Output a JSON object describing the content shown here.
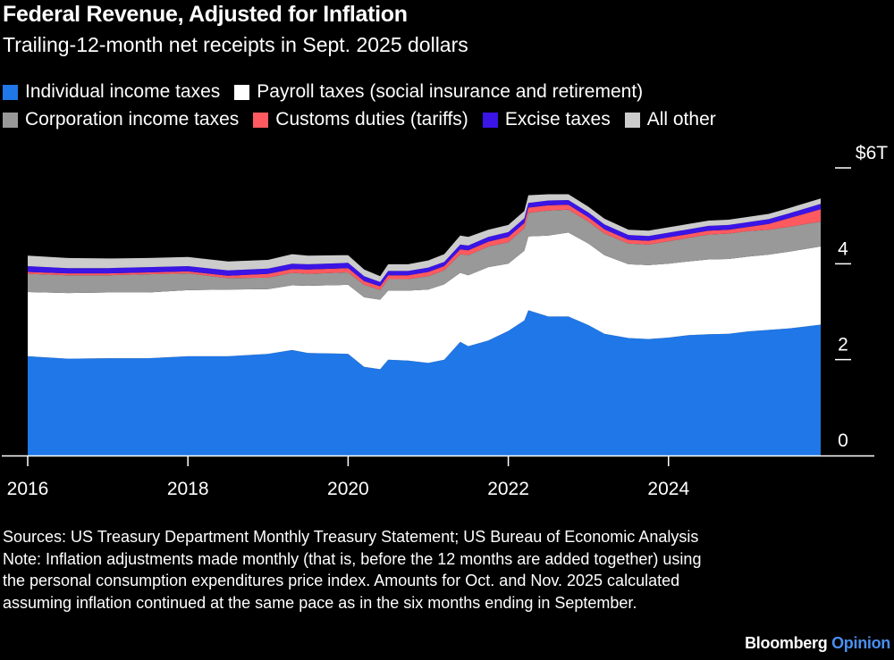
{
  "header": {
    "title": "Federal Revenue, Adjusted for Inflation",
    "subtitle": "Trailing-12-month net receipts in Sept. 2025 dollars"
  },
  "legend": {
    "row1": [
      {
        "label": "Individual income taxes",
        "color": "#1f77e8"
      },
      {
        "label": "Payroll taxes (social insurance and retirement)",
        "color": "#ffffff"
      }
    ],
    "row2": [
      {
        "label": "Corporation income taxes",
        "color": "#999999"
      },
      {
        "label": "Customs duties (tariffs)",
        "color": "#ff5a5f"
      },
      {
        "label": "Excise taxes",
        "color": "#3b14e6"
      },
      {
        "label": "All other",
        "color": "#cccccc"
      }
    ]
  },
  "chart_data": {
    "type": "area",
    "stacked": true,
    "title": "Federal Revenue, Adjusted for Inflation",
    "subtitle": "Trailing-12-month net receipts in Sept. 2025 dollars",
    "xlabel": "",
    "ylabel": "",
    "xlim": [
      2016.0,
      2025.9
    ],
    "ylim": [
      0,
      6
    ],
    "x_ticks": [
      2016,
      2018,
      2020,
      2022,
      2024
    ],
    "x_tick_labels": [
      "2016",
      "2018",
      "2020",
      "2022",
      "2024"
    ],
    "y_ticks": [
      0,
      2,
      4,
      6
    ],
    "y_tick_labels": [
      "0",
      "2",
      "4",
      "$6T"
    ],
    "gridlines": false,
    "legend_position": "top",
    "x": [
      2016.0,
      2016.5,
      2017.0,
      2017.5,
      2018.0,
      2018.5,
      2019.0,
      2019.3,
      2019.5,
      2020.0,
      2020.2,
      2020.4,
      2020.5,
      2020.75,
      2021.0,
      2021.2,
      2021.4,
      2021.5,
      2021.75,
      2022.0,
      2022.2,
      2022.25,
      2022.5,
      2022.75,
      2023.0,
      2023.2,
      2023.5,
      2023.75,
      2024.0,
      2024.25,
      2024.5,
      2024.75,
      2025.0,
      2025.25,
      2025.5,
      2025.9
    ],
    "series": [
      {
        "name": "Individual income taxes",
        "color": "#1f77e8",
        "values": [
          2.07,
          2.02,
          2.03,
          2.03,
          2.07,
          2.07,
          2.12,
          2.2,
          2.14,
          2.12,
          1.85,
          1.8,
          2.0,
          1.98,
          1.93,
          2.0,
          2.37,
          2.28,
          2.4,
          2.6,
          2.82,
          3.03,
          2.9,
          2.9,
          2.72,
          2.54,
          2.45,
          2.43,
          2.46,
          2.51,
          2.53,
          2.54,
          2.59,
          2.62,
          2.65,
          2.73
        ]
      },
      {
        "name": "Payroll taxes (social insurance and retirement)",
        "color": "#ffffff",
        "values": [
          1.34,
          1.37,
          1.37,
          1.37,
          1.38,
          1.39,
          1.35,
          1.35,
          1.4,
          1.44,
          1.45,
          1.45,
          1.44,
          1.46,
          1.53,
          1.57,
          1.44,
          1.48,
          1.53,
          1.4,
          1.45,
          1.54,
          1.69,
          1.75,
          1.7,
          1.64,
          1.54,
          1.54,
          1.54,
          1.54,
          1.56,
          1.56,
          1.56,
          1.57,
          1.6,
          1.63
        ]
      },
      {
        "name": "Corporation income taxes",
        "color": "#999999",
        "values": [
          0.38,
          0.37,
          0.36,
          0.38,
          0.35,
          0.24,
          0.24,
          0.26,
          0.25,
          0.26,
          0.26,
          0.2,
          0.24,
          0.24,
          0.28,
          0.29,
          0.39,
          0.42,
          0.43,
          0.45,
          0.47,
          0.49,
          0.52,
          0.48,
          0.46,
          0.45,
          0.43,
          0.43,
          0.47,
          0.49,
          0.52,
          0.53,
          0.53,
          0.52,
          0.52,
          0.52
        ]
      },
      {
        "name": "Customs duties (tariffs)",
        "color": "#ff5a5f",
        "values": [
          0.04,
          0.04,
          0.04,
          0.04,
          0.04,
          0.05,
          0.08,
          0.08,
          0.09,
          0.09,
          0.08,
          0.08,
          0.08,
          0.08,
          0.09,
          0.09,
          0.1,
          0.1,
          0.1,
          0.11,
          0.11,
          0.11,
          0.11,
          0.1,
          0.09,
          0.09,
          0.08,
          0.08,
          0.08,
          0.08,
          0.08,
          0.08,
          0.09,
          0.12,
          0.18,
          0.26
        ]
      },
      {
        "name": "Excise taxes",
        "color": "#3b14e6",
        "values": [
          0.12,
          0.11,
          0.11,
          0.11,
          0.11,
          0.11,
          0.11,
          0.11,
          0.11,
          0.11,
          0.1,
          0.09,
          0.09,
          0.09,
          0.09,
          0.09,
          0.1,
          0.1,
          0.1,
          0.1,
          0.1,
          0.1,
          0.1,
          0.1,
          0.1,
          0.1,
          0.1,
          0.1,
          0.1,
          0.1,
          0.1,
          0.1,
          0.1,
          0.1,
          0.1,
          0.11
        ]
      },
      {
        "name": "All other",
        "color": "#cccccc",
        "values": [
          0.22,
          0.21,
          0.2,
          0.19,
          0.19,
          0.19,
          0.18,
          0.2,
          0.18,
          0.16,
          0.14,
          0.12,
          0.14,
          0.14,
          0.15,
          0.16,
          0.19,
          0.18,
          0.15,
          0.15,
          0.15,
          0.16,
          0.13,
          0.12,
          0.12,
          0.12,
          0.11,
          0.11,
          0.11,
          0.11,
          0.11,
          0.11,
          0.11,
          0.11,
          0.11,
          0.11
        ]
      }
    ]
  },
  "footer": {
    "sources": "Sources: US Treasury Department Monthly Treasury Statement; US Bureau of Economic Analysis",
    "note": "Note: Inflation adjustments made monthly (that is, before the 12 months are added together) using the personal consumption expenditures price index. Amounts for Oct. and Nov. 2025 calculated assuming inflation continued at the same pace as in the six months ending in September.",
    "brand_main": "Bloomberg",
    "brand_accent": "Opinion"
  }
}
